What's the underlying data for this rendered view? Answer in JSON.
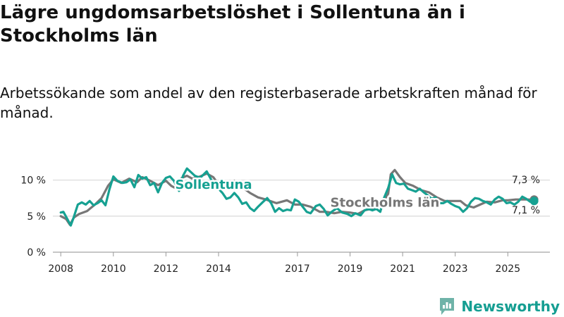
{
  "title": "Lägre ungdomsarbetslöshet i Sollentuna än i Stockholms län",
  "subtitle": "Arbetssökande som andel av den registerbaserade arbetskraften månad för månad.",
  "brand": {
    "name": "Newsworthy",
    "icon": "newsworthy-logo-icon"
  },
  "colors": {
    "sollentuna": "#16a192",
    "stockholm": "#777777",
    "grid": "#dddddd",
    "brand": "#159e92"
  },
  "chart_data": {
    "type": "line",
    "title": "Lägre ungdomsarbetslöshet i Sollentuna än i Stockholms län",
    "xlabel": "",
    "ylabel": "",
    "xlim": [
      2007.7,
      2026.6
    ],
    "ylim": [
      0,
      12.5
    ],
    "grid": true,
    "y_ticks": [
      {
        "value": 0,
        "label": "0 %"
      },
      {
        "value": 5,
        "label": "5 %"
      },
      {
        "value": 10,
        "label": "10 %"
      }
    ],
    "x_ticks": [
      {
        "value": 2008,
        "label": "2008"
      },
      {
        "value": 2010,
        "label": "2010"
      },
      {
        "value": 2012,
        "label": "2012"
      },
      {
        "value": 2014,
        "label": "2014"
      },
      {
        "value": 2017,
        "label": "2017"
      },
      {
        "value": 2019,
        "label": "2019"
      },
      {
        "value": 2021,
        "label": "2021"
      },
      {
        "value": 2023,
        "label": "2023"
      },
      {
        "value": 2025,
        "label": "2025"
      }
    ],
    "series": [
      {
        "name": "Stockholms län",
        "label": "Stockholms län",
        "color": "#777777",
        "end_value_label": "7,3 %",
        "points": [
          [
            2008.0,
            5.0
          ],
          [
            2008.2,
            4.6
          ],
          [
            2008.35,
            3.8
          ],
          [
            2008.5,
            4.8
          ],
          [
            2008.7,
            5.3
          ],
          [
            2009.0,
            5.7
          ],
          [
            2009.3,
            6.6
          ],
          [
            2009.55,
            7.5
          ],
          [
            2009.8,
            9.2
          ],
          [
            2010.0,
            10.1
          ],
          [
            2010.3,
            9.6
          ],
          [
            2010.6,
            10.2
          ],
          [
            2010.9,
            9.7
          ],
          [
            2011.1,
            10.4
          ],
          [
            2011.4,
            9.9
          ],
          [
            2011.7,
            9.3
          ],
          [
            2012.0,
            9.9
          ],
          [
            2012.2,
            9.2
          ],
          [
            2012.4,
            8.8
          ],
          [
            2012.6,
            10.3
          ],
          [
            2012.8,
            10.6
          ],
          [
            2013.0,
            10.2
          ],
          [
            2013.3,
            10.5
          ],
          [
            2013.55,
            10.9
          ],
          [
            2013.8,
            10.4
          ],
          [
            2014.0,
            9.4
          ],
          [
            2014.3,
            9.2
          ],
          [
            2014.6,
            9.9
          ],
          [
            2014.9,
            9.0
          ],
          [
            2015.2,
            8.2
          ],
          [
            2015.5,
            7.6
          ],
          [
            2015.8,
            7.3
          ],
          [
            2016.2,
            6.8
          ],
          [
            2016.6,
            7.2
          ],
          [
            2016.9,
            6.6
          ],
          [
            2017.2,
            6.6
          ],
          [
            2017.5,
            6.3
          ],
          [
            2017.65,
            6.0
          ],
          [
            2017.85,
            5.6
          ],
          [
            2018.1,
            5.6
          ],
          [
            2018.4,
            5.4
          ],
          [
            2018.7,
            5.6
          ],
          [
            2019.0,
            5.5
          ],
          [
            2019.3,
            5.3
          ],
          [
            2019.55,
            5.8
          ],
          [
            2019.8,
            6.0
          ],
          [
            2020.0,
            6.2
          ],
          [
            2020.2,
            6.6
          ],
          [
            2020.45,
            8.1
          ],
          [
            2020.55,
            10.8
          ],
          [
            2020.7,
            11.4
          ],
          [
            2020.9,
            10.4
          ],
          [
            2021.1,
            9.6
          ],
          [
            2021.4,
            9.2
          ],
          [
            2021.7,
            8.6
          ],
          [
            2022.0,
            8.3
          ],
          [
            2022.3,
            7.6
          ],
          [
            2022.6,
            7.1
          ],
          [
            2022.9,
            7.1
          ],
          [
            2023.2,
            7.1
          ],
          [
            2023.4,
            6.5
          ],
          [
            2023.7,
            6.2
          ],
          [
            2023.95,
            6.6
          ],
          [
            2024.2,
            7.0
          ],
          [
            2024.5,
            6.9
          ],
          [
            2024.8,
            7.2
          ],
          [
            2025.0,
            7.2
          ],
          [
            2025.3,
            7.3
          ],
          [
            2025.6,
            7.3
          ],
          [
            2025.8,
            7.3
          ],
          [
            2026.0,
            7.3
          ]
        ]
      },
      {
        "name": "Sollentuna",
        "label": "Sollentuna",
        "color": "#16a192",
        "end_value_label": "7,1 %",
        "points": [
          [
            2008.0,
            5.5
          ],
          [
            2008.1,
            5.6
          ],
          [
            2008.25,
            4.6
          ],
          [
            2008.38,
            3.7
          ],
          [
            2008.5,
            4.9
          ],
          [
            2008.65,
            6.6
          ],
          [
            2008.8,
            6.9
          ],
          [
            2008.95,
            6.6
          ],
          [
            2009.1,
            7.1
          ],
          [
            2009.25,
            6.5
          ],
          [
            2009.4,
            6.8
          ],
          [
            2009.55,
            7.2
          ],
          [
            2009.7,
            6.5
          ],
          [
            2009.85,
            8.7
          ],
          [
            2010.0,
            10.5
          ],
          [
            2010.15,
            9.9
          ],
          [
            2010.35,
            9.6
          ],
          [
            2010.5,
            9.7
          ],
          [
            2010.65,
            10.1
          ],
          [
            2010.8,
            9.0
          ],
          [
            2010.95,
            10.7
          ],
          [
            2011.1,
            10.2
          ],
          [
            2011.25,
            10.4
          ],
          [
            2011.4,
            9.3
          ],
          [
            2011.55,
            9.6
          ],
          [
            2011.7,
            8.3
          ],
          [
            2011.85,
            9.6
          ],
          [
            2012.0,
            10.3
          ],
          [
            2012.15,
            10.5
          ],
          [
            2012.3,
            9.9
          ],
          [
            2012.5,
            8.5
          ],
          [
            2012.65,
            10.6
          ],
          [
            2012.8,
            11.6
          ],
          [
            2012.95,
            11.1
          ],
          [
            2013.1,
            10.6
          ],
          [
            2013.3,
            10.3
          ],
          [
            2013.55,
            11.2
          ],
          [
            2013.7,
            10.2
          ],
          [
            2013.85,
            9.3
          ],
          [
            2014.0,
            8.8
          ],
          [
            2014.15,
            8.2
          ],
          [
            2014.3,
            7.4
          ],
          [
            2014.45,
            7.6
          ],
          [
            2014.6,
            8.2
          ],
          [
            2014.75,
            7.6
          ],
          [
            2014.9,
            6.7
          ],
          [
            2015.05,
            6.9
          ],
          [
            2015.2,
            6.1
          ],
          [
            2015.35,
            5.7
          ],
          [
            2015.5,
            6.3
          ],
          [
            2015.7,
            7.0
          ],
          [
            2015.85,
            7.5
          ],
          [
            2016.0,
            6.8
          ],
          [
            2016.15,
            5.6
          ],
          [
            2016.3,
            6.1
          ],
          [
            2016.45,
            5.7
          ],
          [
            2016.6,
            5.9
          ],
          [
            2016.75,
            5.8
          ],
          [
            2016.9,
            7.3
          ],
          [
            2017.05,
            7.0
          ],
          [
            2017.2,
            6.3
          ],
          [
            2017.35,
            5.6
          ],
          [
            2017.5,
            5.4
          ],
          [
            2017.7,
            6.4
          ],
          [
            2017.85,
            6.6
          ],
          [
            2018.0,
            6.0
          ],
          [
            2018.15,
            5.1
          ],
          [
            2018.3,
            5.6
          ],
          [
            2018.5,
            6.1
          ],
          [
            2018.7,
            5.5
          ],
          [
            2018.9,
            5.3
          ],
          [
            2019.05,
            5.0
          ],
          [
            2019.2,
            5.4
          ],
          [
            2019.4,
            5.1
          ],
          [
            2019.55,
            5.8
          ],
          [
            2019.7,
            6.0
          ],
          [
            2019.85,
            5.8
          ],
          [
            2020.0,
            6.0
          ],
          [
            2020.15,
            5.6
          ],
          [
            2020.3,
            7.6
          ],
          [
            2020.45,
            8.9
          ],
          [
            2020.6,
            10.8
          ],
          [
            2020.75,
            9.6
          ],
          [
            2020.9,
            9.4
          ],
          [
            2021.05,
            9.5
          ],
          [
            2021.2,
            8.8
          ],
          [
            2021.35,
            8.6
          ],
          [
            2021.5,
            8.4
          ],
          [
            2021.65,
            8.8
          ],
          [
            2021.8,
            8.3
          ],
          [
            2021.95,
            7.9
          ],
          [
            2022.1,
            7.4
          ],
          [
            2022.25,
            7.6
          ],
          [
            2022.4,
            6.8
          ],
          [
            2022.55,
            6.8
          ],
          [
            2022.7,
            7.1
          ],
          [
            2022.85,
            6.7
          ],
          [
            2023.0,
            6.4
          ],
          [
            2023.15,
            6.2
          ],
          [
            2023.3,
            5.6
          ],
          [
            2023.45,
            6.1
          ],
          [
            2023.6,
            7.0
          ],
          [
            2023.75,
            7.5
          ],
          [
            2023.9,
            7.4
          ],
          [
            2024.05,
            7.1
          ],
          [
            2024.2,
            6.9
          ],
          [
            2024.35,
            6.6
          ],
          [
            2024.5,
            7.3
          ],
          [
            2024.65,
            7.7
          ],
          [
            2024.8,
            7.4
          ],
          [
            2024.95,
            6.8
          ],
          [
            2025.1,
            6.9
          ],
          [
            2025.25,
            6.6
          ],
          [
            2025.4,
            7.0
          ],
          [
            2025.55,
            7.7
          ],
          [
            2025.7,
            7.4
          ],
          [
            2025.85,
            7.0
          ],
          [
            2026.0,
            7.1
          ]
        ]
      }
    ]
  }
}
